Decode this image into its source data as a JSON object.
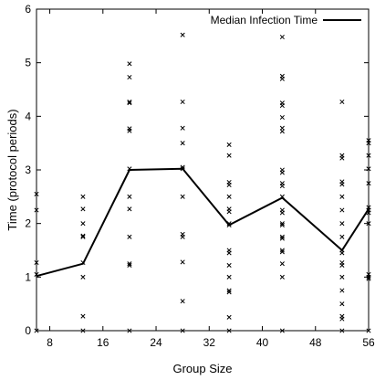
{
  "chart_data": {
    "type": "scatter",
    "xlabel": "Group Size",
    "ylabel": "Time (protocol periods)",
    "xlim": [
      6,
      56
    ],
    "ylim": [
      0,
      6
    ],
    "x_ticks": [
      8,
      16,
      24,
      32,
      40,
      48,
      56
    ],
    "y_ticks": [
      0,
      1,
      2,
      3,
      4,
      5,
      6
    ],
    "grid": false,
    "legend": {
      "position": "top-right",
      "entries": [
        "Median Infection Time"
      ]
    },
    "series": [
      {
        "name": "Median Infection Time",
        "style": "line",
        "x": [
          6,
          13,
          20,
          28,
          35,
          43,
          52,
          56
        ],
        "y": [
          1.02,
          1.25,
          3.0,
          3.02,
          1.97,
          2.48,
          1.5,
          2.27
        ]
      },
      {
        "style": "points",
        "marker": "x",
        "points": [
          [
            6,
            2.55
          ],
          [
            6,
            2.25
          ],
          [
            6,
            1.27
          ],
          [
            6,
            1.05
          ],
          [
            6,
            0.0
          ],
          [
            13,
            2.5
          ],
          [
            13,
            2.27
          ],
          [
            13,
            2.0
          ],
          [
            13,
            1.77
          ],
          [
            13,
            1.75
          ],
          [
            13,
            1.27
          ],
          [
            13,
            1.0
          ],
          [
            13,
            0.27
          ],
          [
            13,
            0.0
          ],
          [
            20,
            4.98
          ],
          [
            20,
            4.73
          ],
          [
            20,
            4.27
          ],
          [
            20,
            4.25
          ],
          [
            20,
            3.77
          ],
          [
            20,
            3.73
          ],
          [
            20,
            3.02
          ],
          [
            20,
            2.5
          ],
          [
            20,
            2.27
          ],
          [
            20,
            1.75
          ],
          [
            20,
            1.25
          ],
          [
            20,
            1.22
          ],
          [
            20,
            0.0
          ],
          [
            28,
            5.52
          ],
          [
            28,
            4.27
          ],
          [
            28,
            3.78
          ],
          [
            28,
            3.5
          ],
          [
            28,
            3.05
          ],
          [
            28,
            3.02
          ],
          [
            28,
            2.5
          ],
          [
            28,
            1.8
          ],
          [
            28,
            1.75
          ],
          [
            28,
            1.28
          ],
          [
            28,
            0.55
          ],
          [
            28,
            0.0
          ],
          [
            35,
            3.47
          ],
          [
            35,
            3.27
          ],
          [
            35,
            2.77
          ],
          [
            35,
            2.72
          ],
          [
            35,
            2.5
          ],
          [
            35,
            2.27
          ],
          [
            35,
            2.22
          ],
          [
            35,
            2.0
          ],
          [
            35,
            1.97
          ],
          [
            35,
            1.5
          ],
          [
            35,
            1.45
          ],
          [
            35,
            1.22
          ],
          [
            35,
            1.0
          ],
          [
            35,
            0.75
          ],
          [
            35,
            0.72
          ],
          [
            35,
            0.25
          ],
          [
            35,
            0.0
          ],
          [
            43,
            5.48
          ],
          [
            43,
            4.75
          ],
          [
            43,
            4.7
          ],
          [
            43,
            4.25
          ],
          [
            43,
            4.2
          ],
          [
            43,
            3.98
          ],
          [
            43,
            3.78
          ],
          [
            43,
            3.72
          ],
          [
            43,
            3.0
          ],
          [
            43,
            2.95
          ],
          [
            43,
            2.75
          ],
          [
            43,
            2.7
          ],
          [
            43,
            2.5
          ],
          [
            43,
            2.25
          ],
          [
            43,
            2.2
          ],
          [
            43,
            2.0
          ],
          [
            43,
            1.97
          ],
          [
            43,
            1.75
          ],
          [
            43,
            1.72
          ],
          [
            43,
            1.5
          ],
          [
            43,
            1.47
          ],
          [
            43,
            1.25
          ],
          [
            43,
            1.0
          ],
          [
            43,
            0.0
          ],
          [
            52,
            4.27
          ],
          [
            52,
            3.27
          ],
          [
            52,
            3.22
          ],
          [
            52,
            2.78
          ],
          [
            52,
            2.73
          ],
          [
            52,
            2.5
          ],
          [
            52,
            2.25
          ],
          [
            52,
            2.0
          ],
          [
            52,
            1.75
          ],
          [
            52,
            1.5
          ],
          [
            52,
            1.45
          ],
          [
            52,
            1.27
          ],
          [
            52,
            1.22
          ],
          [
            52,
            1.0
          ],
          [
            52,
            0.75
          ],
          [
            52,
            0.5
          ],
          [
            52,
            0.27
          ],
          [
            52,
            0.22
          ],
          [
            52,
            0.0
          ],
          [
            56,
            3.55
          ],
          [
            56,
            3.5
          ],
          [
            56,
            3.27
          ],
          [
            56,
            3.02
          ],
          [
            56,
            2.75
          ],
          [
            56,
            2.3
          ],
          [
            56,
            2.25
          ],
          [
            56,
            2.2
          ],
          [
            56,
            2.0
          ],
          [
            56,
            1.05
          ],
          [
            56,
            1.0
          ],
          [
            56,
            0.97
          ],
          [
            56,
            0.0
          ]
        ]
      }
    ]
  }
}
